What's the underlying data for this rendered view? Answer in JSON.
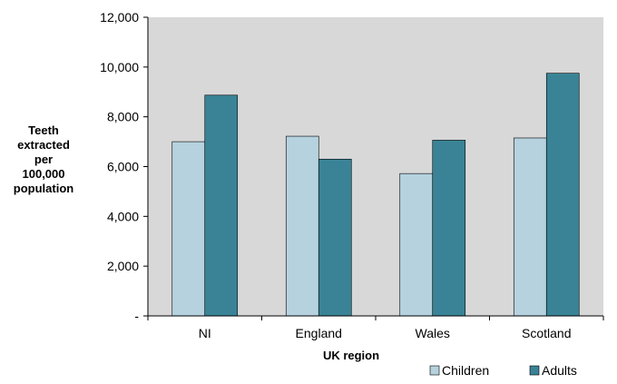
{
  "chart_data": {
    "type": "bar",
    "categories": [
      "NI",
      "England",
      "Wales",
      "Scotland"
    ],
    "series": [
      {
        "name": "Children",
        "values": [
          7000,
          7220,
          5720,
          7150
        ],
        "color": "#b5d2de"
      },
      {
        "name": "Adults",
        "values": [
          8870,
          6300,
          7060,
          9750
        ],
        "color": "#3a8396"
      }
    ],
    "xlabel": "UK region",
    "ylabel": [
      "Teeth",
      "extracted",
      "per",
      "100,000",
      "population"
    ],
    "ylim": [
      0,
      12000
    ],
    "yticks": [
      0,
      2000,
      4000,
      6000,
      8000,
      10000,
      12000
    ],
    "ytick_labels": [
      "-",
      "2,000",
      "4,000",
      "6,000",
      "8,000",
      "10,000",
      "12,000"
    ],
    "plot_background": "#d8d8d8",
    "legend_position": "bottom-right",
    "grid": false
  }
}
